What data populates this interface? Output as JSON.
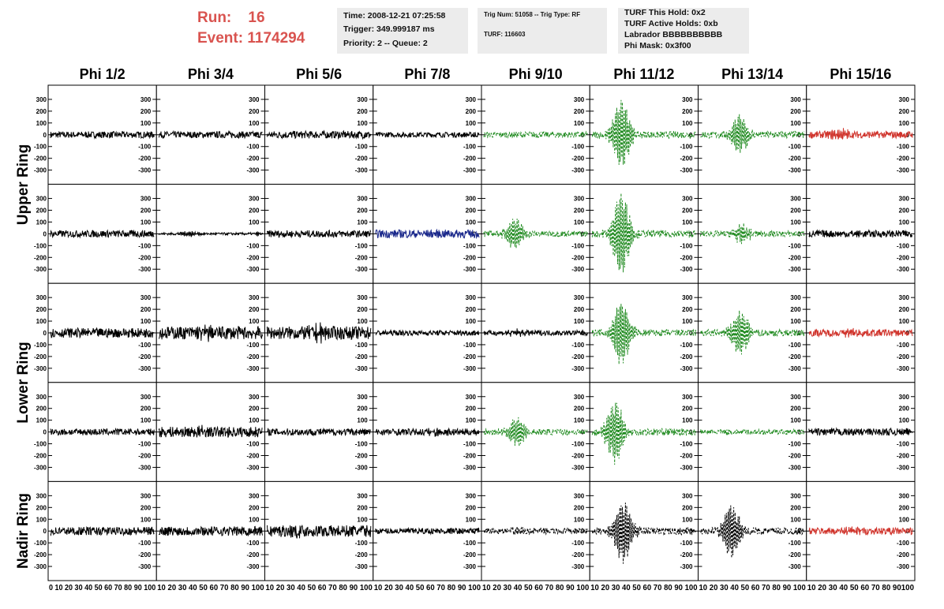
{
  "header": {
    "run_label": "Run:",
    "run_value": "16",
    "event_label": "Event:",
    "event_value": "1174294",
    "time_box": [
      "Time: 2008-12-21 07:25:58",
      "Trigger: 349.999187 ms",
      "Priority: 2 -- Queue: 2"
    ],
    "trig_box": [
      "Trig Num: 51058 -- Trig Type: RF",
      "TURF: 116603"
    ],
    "turf_box": [
      "TURF This Hold: 0x2",
      "TURF Active Holds: 0xb",
      "Labrador BBBBBBBBBB",
      "Phi Mask: 0x3f00"
    ]
  },
  "colors": {
    "normal": "#000000",
    "triggered": "#1f8a1f",
    "blue": "#1c2a8c",
    "masked": "#d0342c",
    "title": "#d9534f",
    "box": "#ececec"
  },
  "chart_data": {
    "type": "line",
    "columns": [
      "Phi 1/2",
      "Phi 3/4",
      "Phi 5/6",
      "Phi 7/8",
      "Phi 9/10",
      "Phi 11/12",
      "Phi 13/14",
      "Phi 15/16"
    ],
    "rows": [
      "Upper Ring",
      "Lower Ring",
      "Nadir Ring"
    ],
    "row_labels": [
      {
        "text": "Upper Ring"
      },
      {
        "text": "Lower Ring"
      },
      {
        "text": "Nadir Ring"
      }
    ],
    "ylim": [
      -380,
      380
    ],
    "yticks": [
      -300,
      -200,
      -100,
      0,
      100,
      200,
      300
    ],
    "xlim": [
      0,
      100
    ],
    "xtick_labels": [
      "0 10 20 30 40 50 60 70 80 90 100",
      "10 20 30 40 50 60 70 80 90 100",
      "10 20 30 40 50 60 70 80 90 100",
      "10 20 30 40 50 60 70 80 90 100",
      "10 20 30 40 50 60 70 80 90 100",
      "10 20 30 40 50 60 70 80 90 100",
      "10 20 30 40 50 60 70 80 90 100",
      "10 20 30 40 50 60 70 80 90100"
    ],
    "panels": [
      [
        {
          "style": "normal",
          "amp": 28,
          "peak": 0,
          "center": 50
        },
        {
          "style": "normal",
          "amp": 28,
          "peak": 0,
          "center": 50
        },
        {
          "style": "normal",
          "amp": 32,
          "peak": 0,
          "center": 50
        },
        {
          "style": "normal",
          "amp": 22,
          "peak": 0,
          "center": 50
        },
        {
          "style": "triggered",
          "amp": 25,
          "peak": 0,
          "center": 50
        },
        {
          "style": "triggered",
          "amp": 30,
          "peak": 290,
          "center": 28
        },
        {
          "style": "triggered",
          "amp": 30,
          "peak": 150,
          "center": 38
        },
        {
          "style": "masked",
          "amp": 30,
          "peak": 40,
          "center": 30
        }
      ],
      [
        {
          "style": "normal",
          "amp": 30,
          "peak": 0,
          "center": 50
        },
        {
          "style": "normal",
          "amp": 10,
          "peak": 20,
          "center": 30
        },
        {
          "style": "normal",
          "amp": 30,
          "peak": 0,
          "center": 50
        },
        {
          "style": "blue",
          "amp": 35,
          "peak": 0,
          "center": 50
        },
        {
          "style": "triggered",
          "amp": 25,
          "peak": 120,
          "center": 30
        },
        {
          "style": "triggered",
          "amp": 30,
          "peak": 340,
          "center": 28
        },
        {
          "style": "triggered",
          "amp": 25,
          "peak": 70,
          "center": 40
        },
        {
          "style": "normal",
          "amp": 30,
          "peak": 0,
          "center": 50
        }
      ],
      [
        {
          "style": "normal",
          "amp": 40,
          "peak": 0,
          "center": 50
        },
        {
          "style": "normal",
          "amp": 55,
          "peak": 30,
          "center": 45
        },
        {
          "style": "normal",
          "amp": 55,
          "peak": 40,
          "center": 50
        },
        {
          "style": "normal",
          "amp": 22,
          "peak": 0,
          "center": 50
        },
        {
          "style": "normal",
          "amp": 22,
          "peak": 20,
          "center": 30
        },
        {
          "style": "triggered",
          "amp": 30,
          "peak": 270,
          "center": 28
        },
        {
          "style": "triggered",
          "amp": 30,
          "peak": 180,
          "center": 38
        },
        {
          "style": "masked",
          "amp": 30,
          "peak": 20,
          "center": 40
        }
      ],
      [
        {
          "style": "normal",
          "amp": 28,
          "peak": 0,
          "center": 50
        },
        {
          "style": "normal",
          "amp": 45,
          "peak": 20,
          "center": 40
        },
        {
          "style": "normal",
          "amp": 30,
          "peak": 0,
          "center": 50
        },
        {
          "style": "normal",
          "amp": 28,
          "peak": 20,
          "center": 60
        },
        {
          "style": "triggered",
          "amp": 25,
          "peak": 110,
          "center": 32
        },
        {
          "style": "triggered",
          "amp": 30,
          "peak": 260,
          "center": 22
        },
        {
          "style": "triggered",
          "amp": 22,
          "peak": 0,
          "center": 50
        },
        {
          "style": "normal",
          "amp": 30,
          "peak": 0,
          "center": 50
        }
      ],
      [
        {
          "style": "normal",
          "amp": 35,
          "peak": 0,
          "center": 50
        },
        {
          "style": "normal",
          "amp": 40,
          "peak": 0,
          "center": 50
        },
        {
          "style": "normal",
          "amp": 50,
          "peak": 20,
          "center": 25
        },
        {
          "style": "normal",
          "amp": 25,
          "peak": 0,
          "center": 50
        },
        {
          "style": "normal-dashed",
          "amp": 25,
          "peak": 20,
          "center": 30
        },
        {
          "style": "normal-dashed",
          "amp": 30,
          "peak": 260,
          "center": 30
        },
        {
          "style": "normal-dashed",
          "amp": 30,
          "peak": 220,
          "center": 30
        },
        {
          "style": "masked",
          "amp": 30,
          "peak": 20,
          "center": 40
        }
      ]
    ]
  }
}
